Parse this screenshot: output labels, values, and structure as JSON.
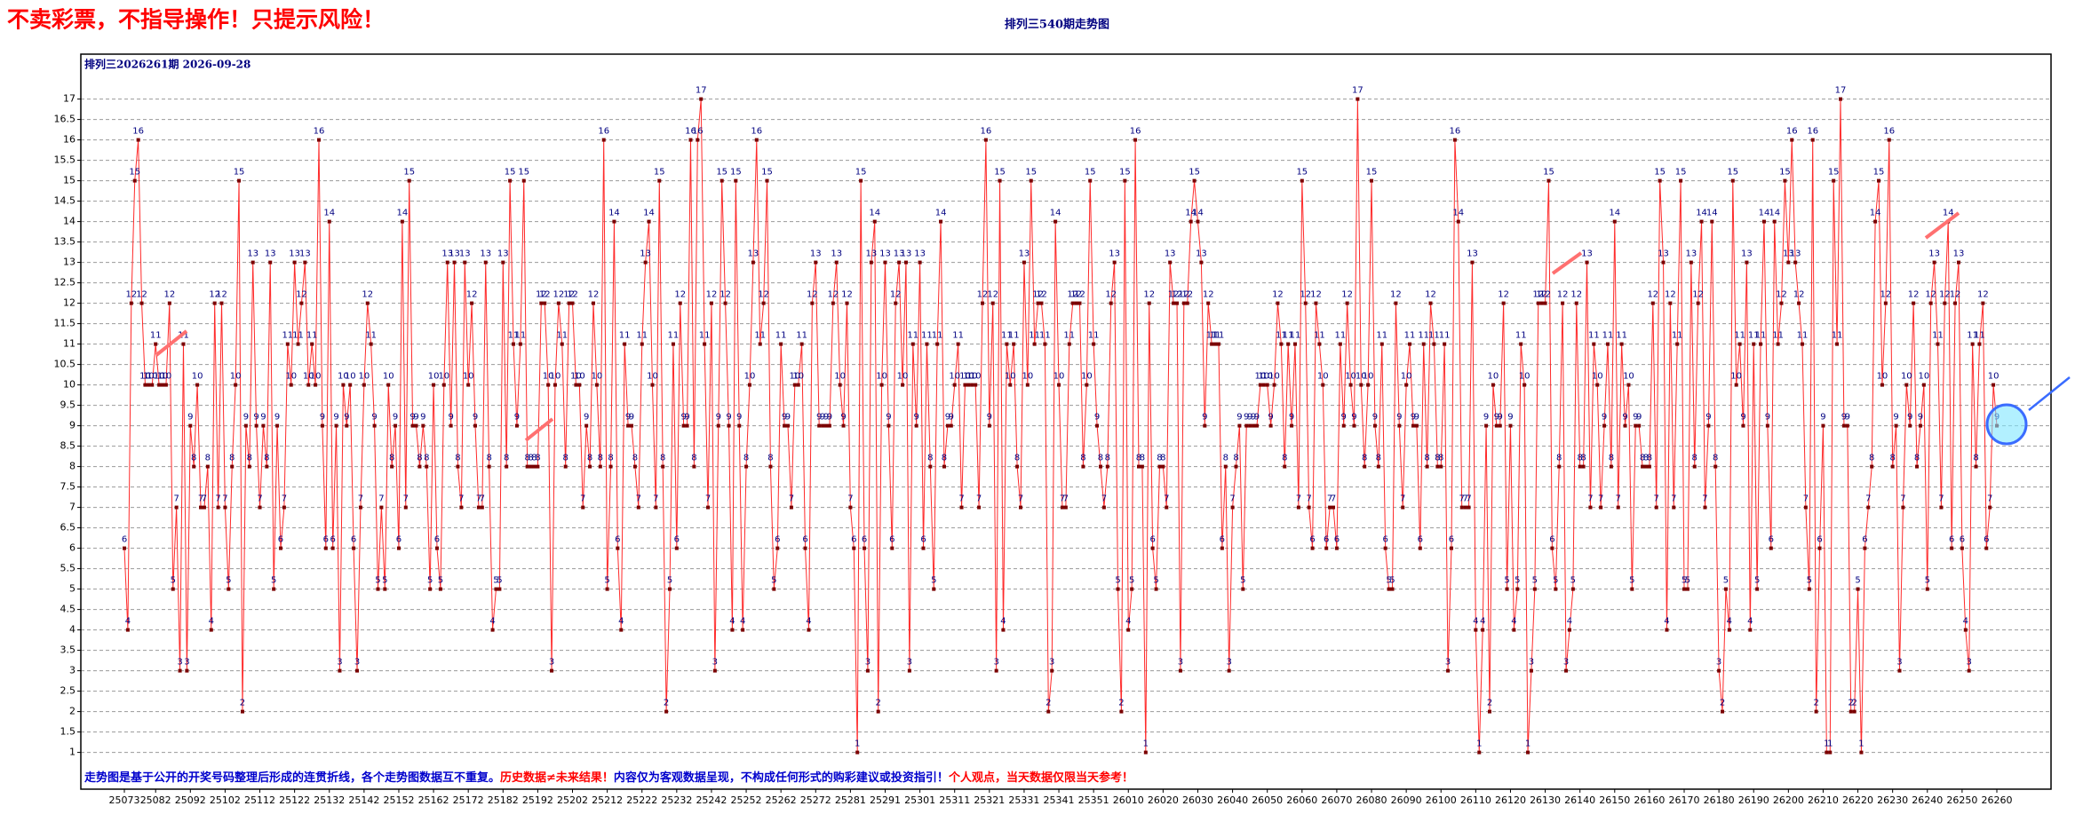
{
  "chart_data": {
    "type": "line",
    "notice": "不卖彩票，不指导操作！只提示风险！",
    "title": "排列三540期走势图",
    "subtitle": "排列三2026261期  2026-09-28",
    "footnote": [
      {
        "text": "走势图是基于公开的开奖号码整理后形成的连贯折线，各个走势图数据互不重复。",
        "color": "#0000cc"
      },
      {
        "text": "历史数据≠未来结果！",
        "color": "#ff0000"
      },
      {
        "text": "内容仅为客观数据呈现，不构成任何形式的购彩建议或投资指引！",
        "color": "#0000cc"
      },
      {
        "text": "个人观点，当天数据仅限当天参考！",
        "color": "#ff0000"
      }
    ],
    "color": "#ff2a2a",
    "marker_color": "#7a0000",
    "label_color": "#000080",
    "grid": true,
    "ylim": [
      0.1,
      18.1
    ],
    "yticks": [
      1,
      1.5,
      2,
      2.5,
      3,
      3.5,
      4,
      4.5,
      5,
      5.5,
      6,
      6.5,
      7,
      7.5,
      8,
      8.5,
      9,
      9.5,
      10,
      10.5,
      11,
      11.5,
      12,
      12.5,
      13,
      13.5,
      14,
      14.5,
      15,
      15.5,
      16,
      16.5,
      17
    ],
    "xticks": [
      {
        "value": 0,
        "label": "25073"
      },
      {
        "value": 9,
        "label": "25082"
      },
      {
        "value": 19,
        "label": "25092"
      },
      {
        "value": 29,
        "label": "25102"
      },
      {
        "value": 39,
        "label": "25112"
      },
      {
        "value": 49,
        "label": "25122"
      },
      {
        "value": 59,
        "label": "25132"
      },
      {
        "value": 69,
        "label": "25142"
      },
      {
        "value": 79,
        "label": "25152"
      },
      {
        "value": 89,
        "label": "25162"
      },
      {
        "value": 99,
        "label": "25172"
      },
      {
        "value": 109,
        "label": "25182"
      },
      {
        "value": 119,
        "label": "25192"
      },
      {
        "value": 129,
        "label": "25202"
      },
      {
        "value": 139,
        "label": "25212"
      },
      {
        "value": 149,
        "label": "25222"
      },
      {
        "value": 159,
        "label": "25232"
      },
      {
        "value": 169,
        "label": "25242"
      },
      {
        "value": 179,
        "label": "25252"
      },
      {
        "value": 189,
        "label": "25262"
      },
      {
        "value": 199,
        "label": "25272"
      },
      {
        "value": 209,
        "label": "25281"
      },
      {
        "value": 219,
        "label": "25291"
      },
      {
        "value": 229,
        "label": "25301"
      },
      {
        "value": 239,
        "label": "25311"
      },
      {
        "value": 249,
        "label": "25321"
      },
      {
        "value": 259,
        "label": "25331"
      },
      {
        "value": 269,
        "label": "25341"
      },
      {
        "value": 279,
        "label": "25351"
      },
      {
        "value": 289,
        "label": "26010"
      },
      {
        "value": 299,
        "label": "26020"
      },
      {
        "value": 309,
        "label": "26030"
      },
      {
        "value": 319,
        "label": "26040"
      },
      {
        "value": 329,
        "label": "26050"
      },
      {
        "value": 339,
        "label": "26060"
      },
      {
        "value": 349,
        "label": "26070"
      },
      {
        "value": 359,
        "label": "26080"
      },
      {
        "value": 369,
        "label": "26090"
      },
      {
        "value": 379,
        "label": "26100"
      },
      {
        "value": 389,
        "label": "26110"
      },
      {
        "value": 399,
        "label": "26120"
      },
      {
        "value": 409,
        "label": "26130"
      },
      {
        "value": 419,
        "label": "26140"
      },
      {
        "value": 429,
        "label": "26150"
      },
      {
        "value": 439,
        "label": "26160"
      },
      {
        "value": 449,
        "label": "26170"
      },
      {
        "value": 459,
        "label": "26180"
      },
      {
        "value": 469,
        "label": "26190"
      },
      {
        "value": 479,
        "label": "26200"
      },
      {
        "value": 489,
        "label": "26210"
      },
      {
        "value": 499,
        "label": "26220"
      },
      {
        "value": 509,
        "label": "26230"
      },
      {
        "value": 519,
        "label": "26240"
      },
      {
        "value": 529,
        "label": "26250"
      },
      {
        "value": 539,
        "label": "26260"
      }
    ],
    "values": [
      6,
      4,
      12,
      15,
      16,
      12,
      10,
      10,
      10,
      11,
      10,
      10,
      10,
      12,
      5,
      7,
      3,
      11,
      3,
      9,
      8,
      10,
      7,
      7,
      8,
      4,
      12,
      7,
      12,
      7,
      5,
      8,
      10,
      15,
      2,
      9,
      8,
      13,
      9,
      7,
      9,
      8,
      13,
      5,
      9,
      6,
      7,
      11,
      10,
      13,
      11,
      12,
      13,
      10,
      11,
      10,
      16,
      9,
      6,
      14,
      6,
      9,
      3,
      10,
      9,
      10,
      6,
      3,
      7,
      10,
      12,
      11,
      9,
      5,
      7,
      5,
      10,
      8,
      9,
      6,
      14,
      7,
      15,
      9,
      9,
      8,
      9,
      8,
      5,
      10,
      6,
      5,
      10,
      13,
      9,
      13,
      8,
      7,
      13,
      10,
      12,
      9,
      7,
      7,
      13,
      8,
      4,
      5,
      5,
      13,
      8,
      15,
      11,
      9,
      11,
      15,
      8,
      8,
      8,
      8,
      12,
      12,
      10,
      3,
      10,
      12,
      11,
      8,
      12,
      12,
      10,
      10,
      7,
      9,
      8,
      12,
      10,
      8,
      16,
      5,
      8,
      14,
      6,
      4,
      11,
      9,
      9,
      8,
      7,
      11,
      13,
      14,
      10,
      7,
      15,
      8,
      2,
      5,
      11,
      6,
      12,
      9,
      9,
      16,
      8,
      16,
      17,
      11,
      7,
      12,
      3,
      9,
      15,
      12,
      9,
      4,
      15,
      9,
      4,
      8,
      10,
      13,
      16,
      11,
      12,
      15,
      8,
      5,
      6,
      11,
      9,
      9,
      7,
      10,
      10,
      11,
      6,
      4,
      12,
      13,
      9,
      9,
      9,
      9,
      12,
      13,
      10,
      9,
      12,
      7,
      6,
      1,
      15,
      6,
      3,
      13,
      14,
      2,
      10,
      13,
      9,
      6,
      12,
      13,
      10,
      13,
      3,
      11,
      9,
      13,
      6,
      11,
      8,
      5,
      11,
      14,
      8,
      9,
      9,
      10,
      11,
      7,
      10,
      10,
      10,
      10,
      7,
      12,
      16,
      9,
      12,
      3,
      15,
      4,
      11,
      10,
      11,
      8,
      7,
      13,
      10,
      15,
      11,
      12,
      12,
      11,
      2,
      3,
      14,
      10,
      7,
      7,
      11,
      12,
      12,
      12,
      8,
      10,
      15,
      11,
      9,
      8,
      7,
      8,
      12,
      13,
      5,
      2,
      15,
      4,
      5,
      16,
      8,
      8,
      1,
      12,
      6,
      5,
      8,
      8,
      7,
      13,
      12,
      12,
      3,
      12,
      12,
      14,
      15,
      14,
      13,
      9,
      12,
      11,
      11,
      11,
      6,
      8,
      3,
      7,
      8,
      9,
      5,
      9,
      9,
      9,
      9,
      10,
      10,
      10,
      9,
      10,
      12,
      11,
      8,
      11,
      9,
      11,
      7,
      15,
      12,
      7,
      6,
      12,
      11,
      10,
      6,
      7,
      7,
      6,
      11,
      9,
      12,
      10,
      9,
      17,
      10,
      8,
      10,
      15,
      9,
      8,
      11,
      6,
      5,
      5,
      12,
      9,
      7,
      10,
      11,
      9,
      9,
      6,
      11,
      8,
      12,
      11,
      8,
      8,
      11,
      3,
      6,
      16,
      14,
      7,
      7,
      7,
      13,
      4,
      1,
      4,
      9,
      2,
      10,
      9,
      9,
      12,
      5,
      9,
      4,
      5,
      11,
      10,
      1,
      3,
      5,
      12,
      12,
      12,
      15,
      6,
      5,
      8,
      12,
      3,
      4,
      5,
      12,
      8,
      8,
      13,
      7,
      11,
      10,
      7,
      9,
      11,
      8,
      14,
      7,
      11,
      9,
      10,
      5,
      9,
      9,
      8,
      8,
      8,
      12,
      7,
      15,
      13,
      4,
      12,
      7,
      11,
      15,
      5,
      5,
      13,
      8,
      12,
      14,
      7,
      9,
      14,
      8,
      3,
      2,
      5,
      4,
      15,
      10,
      11,
      9,
      13,
      4,
      11,
      5,
      11,
      14,
      9,
      6,
      14,
      11,
      12,
      15,
      13,
      16,
      13,
      12,
      11,
      7,
      5,
      16,
      2,
      6,
      9,
      1,
      1,
      15,
      11,
      17,
      9,
      9,
      2,
      2,
      5,
      1,
      6,
      7,
      8,
      14,
      15,
      10,
      12,
      16,
      8,
      9,
      3,
      7,
      10,
      9,
      12,
      8,
      9,
      10,
      5,
      12,
      13,
      11,
      7,
      12,
      14,
      6,
      12,
      13,
      6,
      4,
      3,
      11,
      8,
      11,
      12,
      6,
      7,
      10,
      9
    ]
  }
}
